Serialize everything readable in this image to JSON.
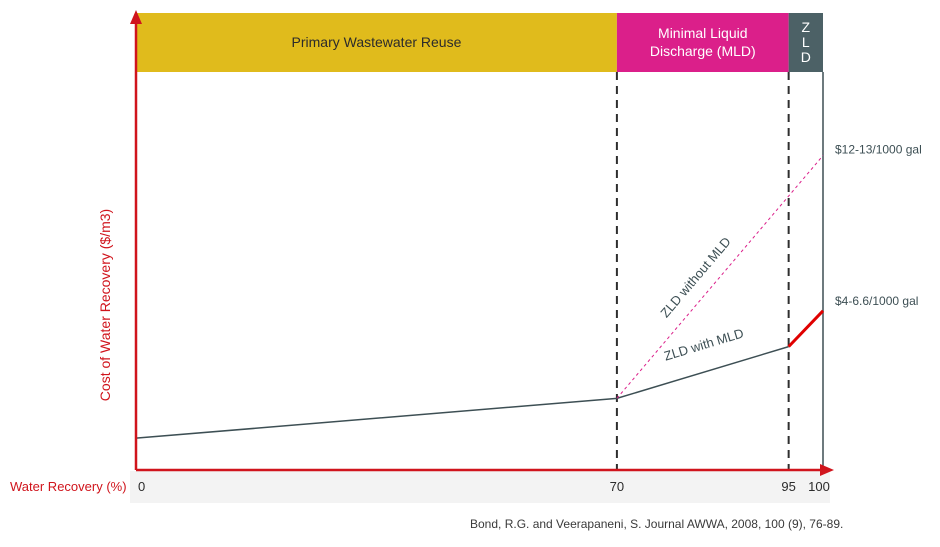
{
  "chart_data": {
    "type": "line",
    "xlabel": "Water Recovery (%)",
    "ylabel": "Cost of Water Recovery ($/m3)",
    "xlim": [
      0,
      100
    ],
    "x_ticks": [
      "0",
      "70",
      "95",
      "100"
    ],
    "zones": [
      {
        "label_lines": [
          "Primary Wastewater Reuse"
        ],
        "x_start": 0,
        "x_end": 70,
        "color": "#E0BB1C"
      },
      {
        "label_lines": [
          "Minimal Liquid",
          "Discharge (MLD)"
        ],
        "x_start": 70,
        "x_end": 95,
        "color": "#DB1F8A"
      },
      {
        "label_lines": [
          "Z",
          "L",
          "D"
        ],
        "x_start": 95,
        "x_end": 100,
        "color": "#4C6166"
      }
    ],
    "boundaries": [
      70,
      95
    ],
    "series": [
      {
        "label": "ZLD with MLD",
        "style": "solid",
        "color": "#3D4F54",
        "points": [
          [
            0,
            0.08
          ],
          [
            70,
            0.18
          ],
          [
            95,
            0.31
          ]
        ]
      },
      {
        "label": "",
        "style": "solid",
        "color": "#E00000",
        "points": [
          [
            95,
            0.31
          ],
          [
            100,
            0.4
          ]
        ]
      },
      {
        "label": "ZLD without MLD",
        "style": "dashed",
        "color": "#DB1F8A",
        "points": [
          [
            70,
            0.18
          ],
          [
            100,
            0.79
          ]
        ]
      }
    ],
    "annotations": [
      {
        "text": "$12-13/1000 gal",
        "x": 100,
        "y": 0.79
      },
      {
        "text": "$4-6.6/1000 gal",
        "x": 100,
        "y": 0.41
      }
    ]
  },
  "citation": "Bond, R.G. and Veerapaneni, S. Journal AWWA, 2008, 100 (9), 76-89."
}
